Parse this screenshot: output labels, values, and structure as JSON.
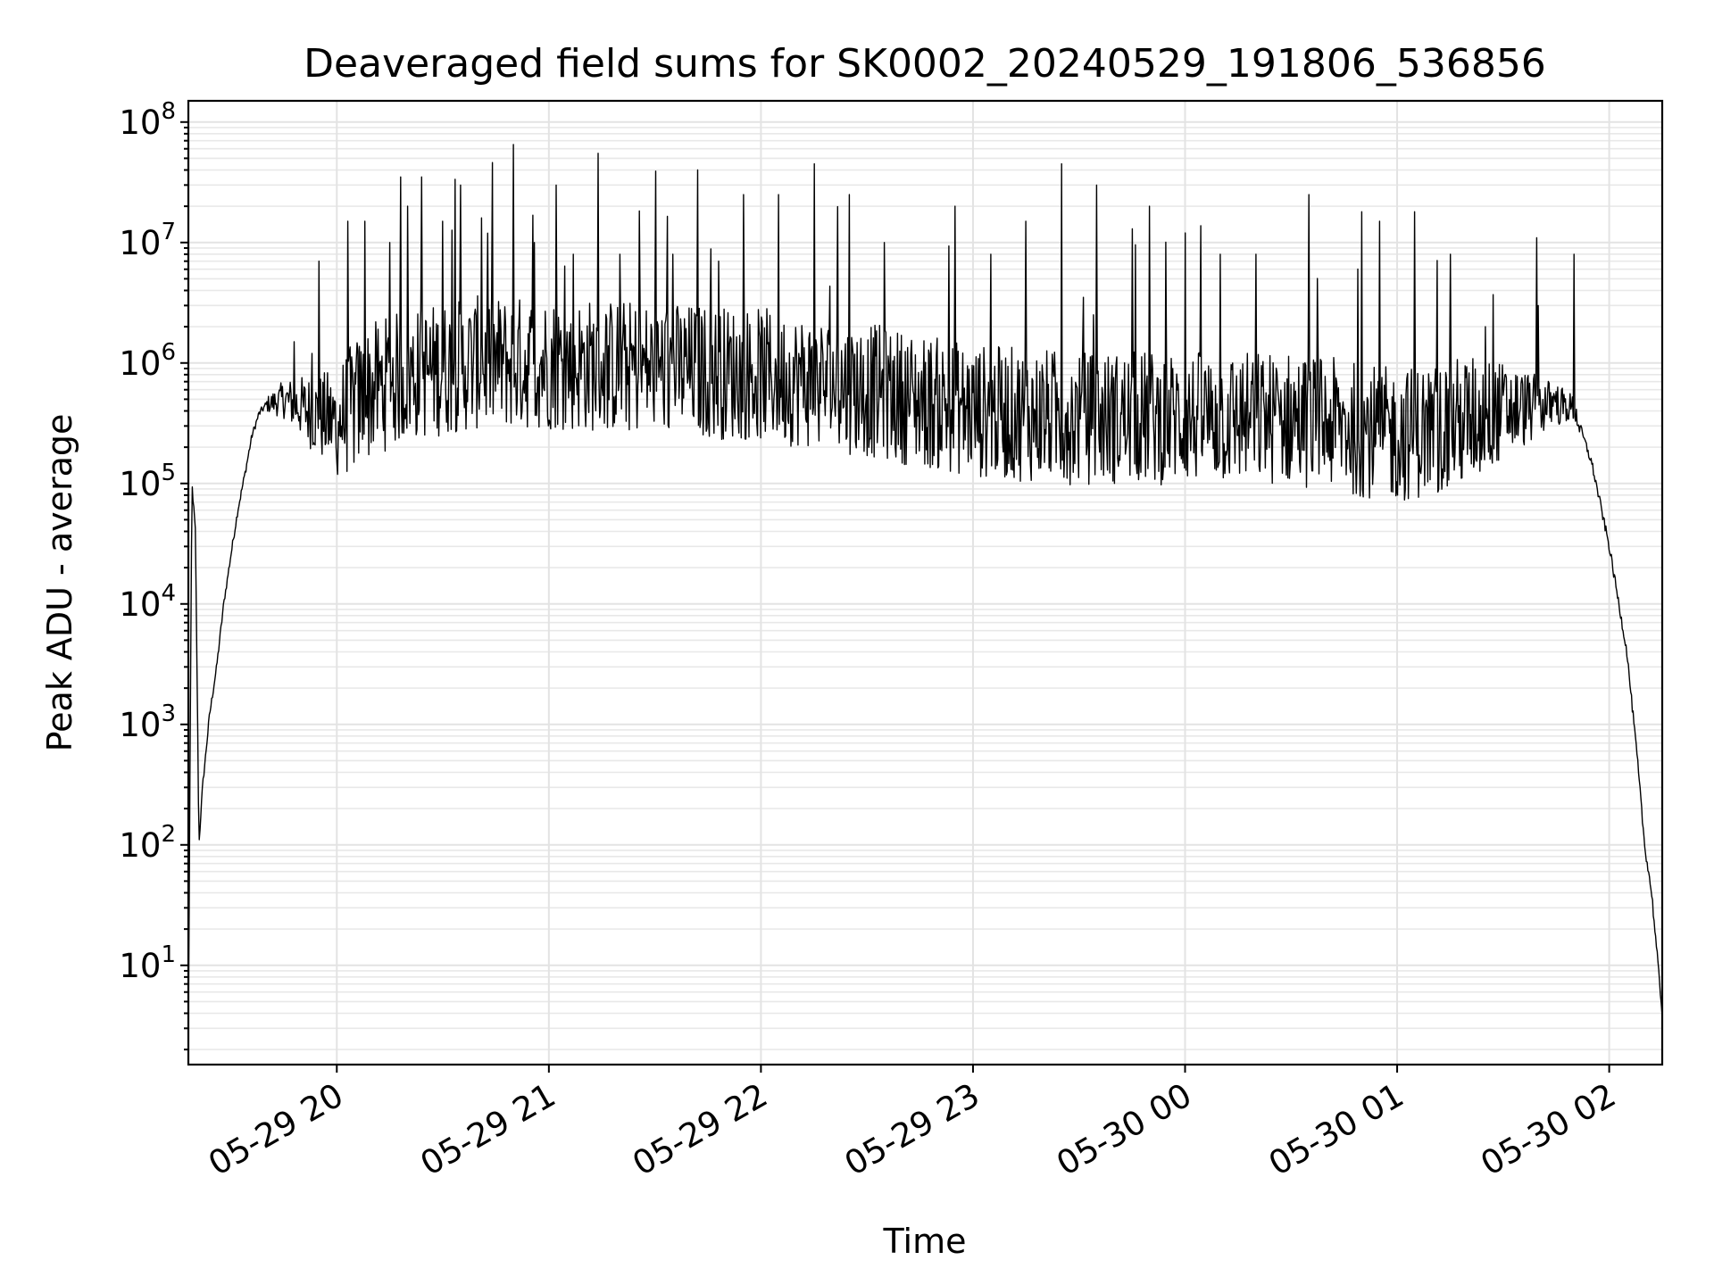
{
  "chart_data": {
    "type": "line",
    "title": "Deaveraged field sums for SK0002_20240529_191806_536856",
    "xlabel": "Time",
    "ylabel": "Peak ADU - average",
    "y_scale": "log",
    "ylim": [
      1.5,
      150000000
    ],
    "xlim": [
      "2024-05-29 19:18",
      "2024-05-30 02:15"
    ],
    "grid": true,
    "grid_minor": true,
    "x_ticks": [
      {
        "value": "2024-05-29 20:00",
        "label": "05-29 20"
      },
      {
        "value": "2024-05-29 21:00",
        "label": "05-29 21"
      },
      {
        "value": "2024-05-29 22:00",
        "label": "05-29 22"
      },
      {
        "value": "2024-05-29 23:00",
        "label": "05-29 23"
      },
      {
        "value": "2024-05-30 00:00",
        "label": "05-30 00"
      },
      {
        "value": "2024-05-30 01:00",
        "label": "05-30 01"
      },
      {
        "value": "2024-05-30 02:00",
        "label": "05-30 02"
      }
    ],
    "y_ticks": [
      {
        "value": 10,
        "base": "10",
        "exp": "1"
      },
      {
        "value": 100,
        "base": "10",
        "exp": "2"
      },
      {
        "value": 1000,
        "base": "10",
        "exp": "3"
      },
      {
        "value": 10000,
        "base": "10",
        "exp": "4"
      },
      {
        "value": 100000,
        "base": "10",
        "exp": "5"
      },
      {
        "value": 1000000,
        "base": "10",
        "exp": "6"
      },
      {
        "value": 10000000,
        "base": "10",
        "exp": "7"
      },
      {
        "value": 100000000,
        "base": "10",
        "exp": "8"
      }
    ],
    "series": [
      {
        "color": "#000000",
        "points": [
          [
            "2024-05-29 19:18",
            3
          ],
          [
            "2024-05-29 19:19",
            100000
          ],
          [
            "2024-05-29 19:20",
            40000
          ],
          [
            "2024-05-29 19:21",
            100
          ],
          [
            "2024-05-29 19:22",
            300
          ],
          [
            "2024-05-29 19:24",
            1200
          ],
          [
            "2024-05-29 19:26",
            3000
          ],
          [
            "2024-05-29 19:28",
            10000
          ],
          [
            "2024-05-29 19:30",
            25000
          ],
          [
            "2024-05-29 19:32",
            60000
          ],
          [
            "2024-05-29 19:34",
            120000
          ],
          [
            "2024-05-29 19:36",
            250000
          ],
          [
            "2024-05-29 19:38",
            380000
          ],
          [
            "2024-05-29 19:40",
            450000
          ],
          [
            "2024-05-29 19:45",
            500000
          ],
          [
            "2024-05-29 19:50",
            430000
          ],
          [
            "2024-05-29 19:55",
            360000
          ],
          [
            "2024-05-29 20:00",
            320000
          ],
          [
            "2024-05-29 20:10",
            600000
          ],
          [
            "2024-05-29 20:20",
            800000
          ],
          [
            "2024-05-29 20:40",
            1000000
          ],
          [
            "2024-05-29 21:00",
            1000000
          ],
          [
            "2024-05-29 21:30",
            900000
          ],
          [
            "2024-05-29 22:00",
            800000
          ],
          [
            "2024-05-29 22:30",
            600000
          ],
          [
            "2024-05-29 23:00",
            400000
          ],
          [
            "2024-05-29 23:30",
            350000
          ],
          [
            "2024-05-30 00:00",
            350000
          ],
          [
            "2024-05-30 00:30",
            350000
          ],
          [
            "2024-05-30 01:00",
            250000
          ],
          [
            "2024-05-30 01:15",
            300000
          ],
          [
            "2024-05-30 01:30",
            400000
          ],
          [
            "2024-05-30 01:45",
            450000
          ],
          [
            "2024-05-30 01:50",
            420000
          ],
          [
            "2024-05-30 01:55",
            150000
          ],
          [
            "2024-05-30 02:00",
            30000
          ],
          [
            "2024-05-30 02:05",
            4000
          ],
          [
            "2024-05-30 02:08",
            500
          ],
          [
            "2024-05-30 02:10",
            100
          ],
          [
            "2024-05-30 02:12",
            40
          ],
          [
            "2024-05-30 02:15",
            4
          ]
        ],
        "spikes": [
          [
            "2024-05-29 19:48",
            1500000
          ],
          [
            "2024-05-29 19:53",
            1200000
          ],
          [
            "2024-05-29 19:55",
            7000000
          ],
          [
            "2024-05-29 20:03",
            15000000
          ],
          [
            "2024-05-29 20:08",
            15000000
          ],
          [
            "2024-05-29 20:15",
            10000000
          ],
          [
            "2024-05-29 20:18",
            35000000
          ],
          [
            "2024-05-29 20:20",
            20000000
          ],
          [
            "2024-05-29 20:24",
            35000000
          ],
          [
            "2024-05-29 20:30",
            15000000
          ],
          [
            "2024-05-29 20:35",
            30000000
          ],
          [
            "2024-05-29 20:41",
            16000000
          ],
          [
            "2024-05-29 20:44",
            20000000
          ],
          [
            "2024-05-29 20:50",
            65000000
          ],
          [
            "2024-05-29 20:56",
            10000000
          ],
          [
            "2024-05-29 21:02",
            30000000
          ],
          [
            "2024-05-29 21:07",
            8000000
          ],
          [
            "2024-05-29 21:14",
            55000000
          ],
          [
            "2024-05-29 21:20",
            8000000
          ],
          [
            "2024-05-29 21:35",
            8000000
          ],
          [
            "2024-05-29 21:42",
            40000000
          ],
          [
            "2024-05-29 21:48",
            7000000
          ],
          [
            "2024-05-29 21:55",
            25000000
          ],
          [
            "2024-05-29 22:05",
            25000000
          ],
          [
            "2024-05-29 22:15",
            45000000
          ],
          [
            "2024-05-29 22:25",
            25000000
          ],
          [
            "2024-05-29 22:35",
            10000000
          ],
          [
            "2024-05-29 22:55",
            20000000
          ],
          [
            "2024-05-29 23:05",
            8000000
          ],
          [
            "2024-05-29 23:15",
            15000000
          ],
          [
            "2024-05-29 23:25",
            45000000
          ],
          [
            "2024-05-29 23:35",
            30000000
          ],
          [
            "2024-05-29 23:45",
            13000000
          ],
          [
            "2024-05-29 23:50",
            20000000
          ],
          [
            "2024-05-30 00:00",
            12000000
          ],
          [
            "2024-05-30 00:10",
            8000000
          ],
          [
            "2024-05-30 00:20",
            8000000
          ],
          [
            "2024-05-30 00:35",
            25000000
          ],
          [
            "2024-05-30 00:50",
            18000000
          ],
          [
            "2024-05-30 00:55",
            15000000
          ],
          [
            "2024-05-30 01:05",
            18000000
          ],
          [
            "2024-05-30 01:15",
            8000000
          ],
          [
            "2024-05-30 01:25",
            2000000
          ],
          [
            "2024-05-30 01:40",
            3000000
          ],
          [
            "2024-05-30 01:50",
            8000000
          ]
        ]
      }
    ]
  }
}
